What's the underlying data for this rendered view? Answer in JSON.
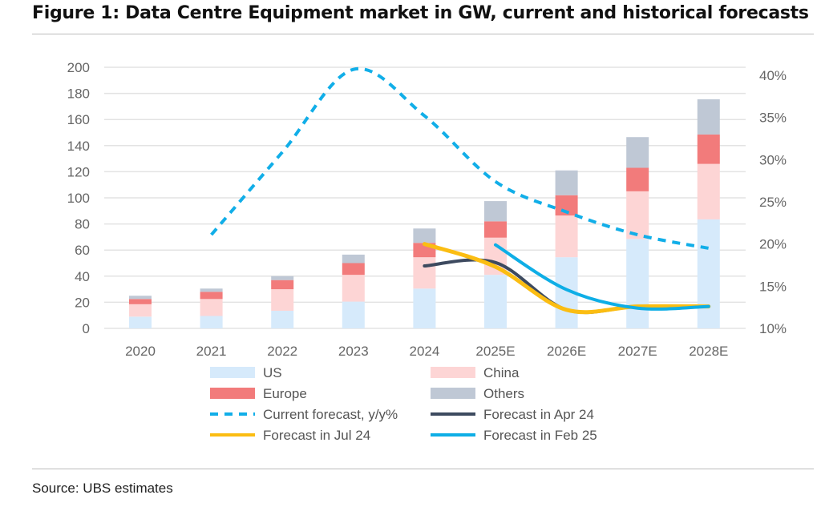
{
  "title": "Figure 1: Data Centre Equipment market in GW, current and historical forecasts",
  "source": "Source: UBS estimates",
  "chart_data": {
    "type": "bar",
    "stacked": true,
    "categories": [
      "2020",
      "2021",
      "2022",
      "2023",
      "2024",
      "2025E",
      "2026E",
      "2027E",
      "2028E"
    ],
    "ylim": [
      0,
      200
    ],
    "yticks": [
      "0",
      "20",
      "40",
      "60",
      "80",
      "100",
      "120",
      "140",
      "160",
      "180",
      "200"
    ],
    "y2lim": [
      10,
      40
    ],
    "y2ticks": [
      "10%",
      "15%",
      "20%",
      "25%",
      "30%",
      "35%",
      "40%"
    ],
    "grid": true,
    "legend_position": "bottom",
    "series": [
      {
        "name": "US",
        "kind": "bar",
        "color": "#d6eafb",
        "values": [
          9,
          9.5,
          13.5,
          20.5,
          30.5,
          41,
          54.5,
          68.5,
          83.5
        ]
      },
      {
        "name": "China",
        "kind": "bar",
        "color": "#fdd5d5",
        "values": [
          9.5,
          13,
          16.5,
          20.5,
          24,
          28.5,
          32,
          36.5,
          42.5
        ]
      },
      {
        "name": "Europe",
        "kind": "bar",
        "color": "#f27b7b",
        "values": [
          4,
          5.5,
          7,
          9,
          11,
          12.5,
          15.5,
          18,
          22.5
        ]
      },
      {
        "name": "Others",
        "kind": "bar",
        "color": "#bfc8d5",
        "values": [
          2.5,
          2.5,
          3,
          6.5,
          11,
          15.5,
          19,
          23.5,
          27
        ]
      },
      {
        "name": "Current forecast, y/y%",
        "kind": "line",
        "axis": "right",
        "dashed": true,
        "color": "#11aee8",
        "values": [
          null,
          21.1,
          30.9,
          40.7,
          35.2,
          27.4,
          23.8,
          21.1,
          19.5
        ]
      },
      {
        "name": "Forecast in Apr 24",
        "kind": "line",
        "axis": "right",
        "color": "#3d4a5f",
        "values": [
          null,
          null,
          null,
          null,
          17.4,
          17.8,
          12.2,
          12.6,
          12.6
        ]
      },
      {
        "name": "Forecast in Jul 24",
        "kind": "line",
        "axis": "right",
        "color": "#fbbd12",
        "values": [
          null,
          null,
          null,
          null,
          20.0,
          17.3,
          12.2,
          12.6,
          12.6
        ]
      },
      {
        "name": "Forecast in Feb 25",
        "kind": "line",
        "axis": "right",
        "color": "#0eaee6",
        "values": [
          null,
          null,
          null,
          null,
          null,
          19.9,
          14.6,
          12.4,
          12.6
        ]
      }
    ]
  }
}
